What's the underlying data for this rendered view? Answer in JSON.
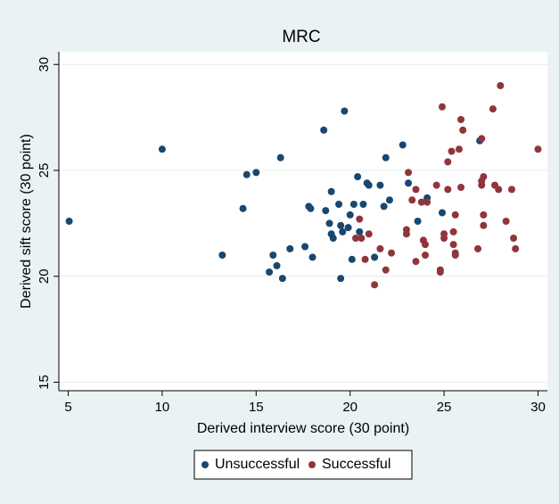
{
  "chart_data": {
    "type": "scatter",
    "title": "MRC",
    "x_label": "Derived interview score (30 point)",
    "y_label": "Derived sift score (30 point)",
    "xlim": [
      4.5,
      30.5
    ],
    "ylim": [
      14.6,
      30.6
    ],
    "xticks": [
      5,
      10,
      15,
      20,
      25,
      30
    ],
    "yticks": [
      15,
      20,
      25,
      30
    ],
    "grid": true,
    "legend": "bottom",
    "series": [
      {
        "name": "Unsuccessful",
        "color": "#1a476f",
        "x": [
          5.05,
          10.0,
          13.2,
          14.3,
          14.5,
          15.0,
          16.3,
          15.7,
          16.1,
          15.9,
          16.4,
          16.8,
          17.6,
          17.8,
          17.9,
          18.0,
          18.6,
          18.7,
          18.9,
          19.0,
          19.0,
          19.1,
          19.4,
          19.5,
          19.6,
          19.5,
          19.7,
          19.9,
          20.0,
          20.1,
          20.2,
          20.4,
          20.5,
          20.7,
          20.9,
          21.0,
          21.3,
          21.6,
          21.8,
          21.9,
          22.1,
          22.8,
          23.1,
          23.6,
          24.1,
          24.9,
          26.9
        ],
        "values": [
          22.6,
          26.0,
          21.0,
          23.2,
          24.8,
          24.9,
          25.6,
          20.2,
          20.5,
          21.0,
          19.9,
          21.3,
          21.4,
          23.3,
          23.2,
          20.9,
          26.9,
          23.1,
          22.5,
          24.0,
          22.0,
          21.8,
          23.4,
          22.4,
          22.1,
          19.9,
          27.8,
          22.3,
          22.9,
          20.8,
          23.4,
          24.7,
          22.1,
          23.4,
          24.4,
          24.3,
          20.9,
          24.3,
          23.3,
          25.6,
          23.6,
          26.2,
          24.4,
          22.6,
          23.7,
          23.0,
          26.4
        ]
      },
      {
        "name": "Successful",
        "color": "#90353b",
        "x": [
          23.1,
          23.0,
          23.0,
          23.3,
          23.5,
          23.5,
          23.8,
          23.9,
          24.0,
          24.0,
          24.1,
          24.6,
          24.8,
          24.8,
          24.9,
          25.0,
          25.0,
          25.2,
          25.2,
          25.4,
          25.5,
          25.5,
          25.6,
          25.6,
          25.6,
          25.9,
          26.0,
          25.8,
          25.9,
          26.8,
          27.0,
          27.1,
          27.0,
          27.0,
          27.1,
          27.1,
          27.6,
          27.7,
          27.9,
          28.0,
          28.3,
          28.6,
          28.7,
          28.8,
          30.0,
          20.3,
          20.5,
          20.6,
          20.8,
          21.0,
          21.3,
          21.6,
          21.9,
          22.2
        ],
        "values": [
          24.9,
          22.2,
          22.0,
          23.6,
          24.1,
          20.7,
          23.5,
          21.7,
          21.0,
          21.5,
          23.5,
          24.3,
          20.3,
          20.2,
          28.0,
          22.0,
          21.8,
          25.4,
          24.1,
          25.9,
          22.1,
          21.5,
          21.1,
          22.9,
          21.0,
          27.4,
          26.9,
          26.0,
          24.2,
          21.3,
          26.5,
          24.7,
          24.5,
          24.3,
          22.9,
          22.4,
          27.9,
          24.3,
          24.1,
          29.0,
          22.6,
          24.1,
          21.8,
          21.3,
          26.0,
          21.8,
          22.7,
          21.8,
          20.8,
          22.0,
          19.6,
          21.3,
          20.3,
          21.1
        ]
      }
    ]
  }
}
